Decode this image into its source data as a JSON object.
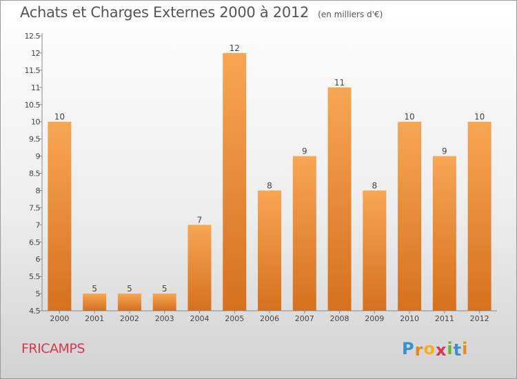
{
  "chart_data": {
    "type": "bar",
    "title": "Achats et Charges Externes 2000 à 2012",
    "subtitle": "(en milliers d'€)",
    "categories": [
      "2000",
      "2001",
      "2002",
      "2003",
      "2004",
      "2005",
      "2006",
      "2007",
      "2008",
      "2009",
      "2010",
      "2011",
      "2012"
    ],
    "values": [
      10,
      5,
      5,
      5,
      7,
      12,
      8,
      9,
      11,
      8,
      10,
      9,
      10
    ],
    "data_labels": [
      "10",
      "5",
      "5",
      "5",
      "7",
      "12",
      "8",
      "9",
      "11",
      "8",
      "10",
      "9",
      "10"
    ],
    "ylim": [
      4.5,
      12.5
    ],
    "yticks": [
      "4.5",
      "5",
      "5.5",
      "6",
      "6.5",
      "7",
      "7.5",
      "8",
      "8.5",
      "9",
      "9.5",
      "10",
      "10.5",
      "11",
      "11.5",
      "12",
      "12.5"
    ],
    "grid": false,
    "legend": "none",
    "bar_color_top": "#f7a654",
    "bar_color_bottom": "#d6701d"
  },
  "footer": {
    "place": "FRICAMPS",
    "brand": "Proxiti",
    "brand_letters": [
      "P",
      "r",
      "o",
      "x",
      "i",
      "t",
      "i"
    ],
    "brand_colors": [
      "#3a8fd0",
      "#e08a1e",
      "#f2b21c",
      "#d9364f",
      "#6ab22e",
      "#3a8fd0",
      "#e08a1e"
    ]
  }
}
